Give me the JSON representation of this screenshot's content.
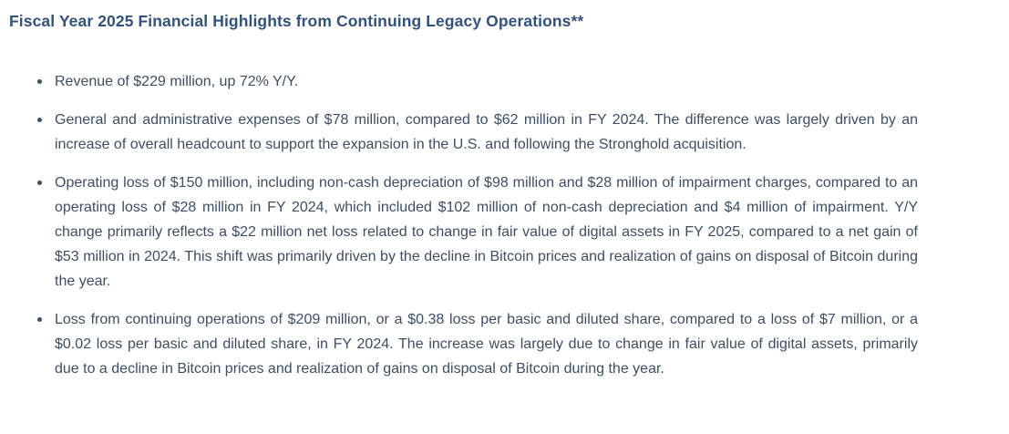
{
  "page": {
    "heading": "Fiscal Year 2025 Financial Highlights from Continuing Legacy Operations**",
    "highlights": [
      "Revenue of $229 million, up 72% Y/Y.",
      "General and administrative expenses of $78 million, compared to $62 million in FY 2024. The difference was largely driven by an increase of overall headcount to support the expansion in the U.S. and following the Stronghold acquisition.",
      "Operating loss of $150 million, including non-cash depreciation of $98 million and $28 million of impairment charges, compared to an operating loss of $28 million in FY 2024, which included $102 million of non-cash depreciation and $4 million of impairment. Y/Y change primarily reflects a $22 million net loss related to change in fair value of digital assets in FY 2025, compared to a net gain of $53 million in 2024. This shift was primarily driven by the decline in Bitcoin prices and realization of gains on disposal of Bitcoin during the year.",
      "Loss from continuing operations of $209 million, or a $0.38 loss per basic and diluted share, compared to a loss of $7 million, or a $0.02 loss per basic and diluted share, in FY 2024. The increase was largely due to change in fair value of digital assets, primarily due to a decline in Bitcoin prices and realization of gains on disposal of Bitcoin during the year."
    ],
    "colors": {
      "heading": "#33527a",
      "body": "#3d4e63",
      "background": "#ffffff"
    }
  }
}
